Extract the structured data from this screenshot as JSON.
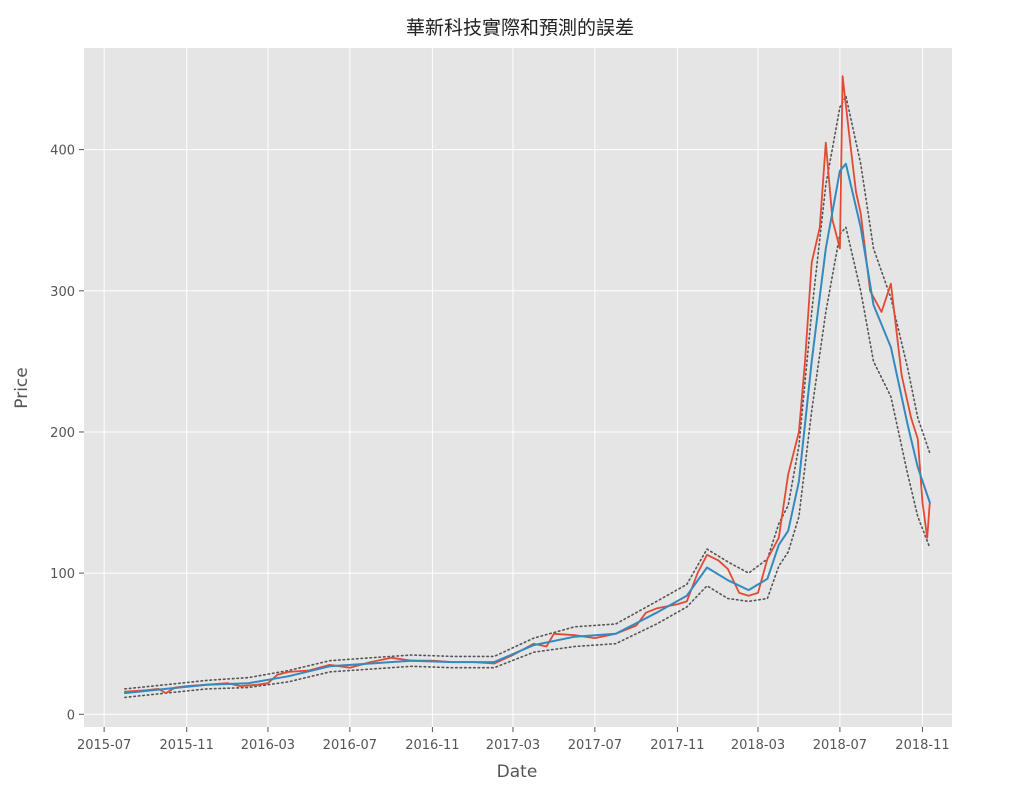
{
  "chart_data": {
    "type": "line",
    "title": "華新科技實際和預測的誤差",
    "xlabel": "Date",
    "ylabel": "Price",
    "x_ticks": [
      "2015-07",
      "2015-11",
      "2016-03",
      "2016-07",
      "2016-11",
      "2017-03",
      "2017-07",
      "2017-11",
      "2018-03",
      "2018-07",
      "2018-11"
    ],
    "y_ticks": [
      0,
      100,
      200,
      300,
      400
    ],
    "xlim": [
      "2015-06-01",
      "2018-12-15"
    ],
    "ylim": [
      -9,
      472
    ],
    "grid": true,
    "background": "#e5e5e5",
    "series": [
      {
        "role": "actual",
        "color": "#e24a33",
        "x": [
          "2015-08-01",
          "2015-09-01",
          "2015-09-20",
          "2015-10-01",
          "2015-10-15",
          "2015-11-01",
          "2015-12-01",
          "2016-01-01",
          "2016-01-20",
          "2016-02-15",
          "2016-03-01",
          "2016-03-15",
          "2016-04-01",
          "2016-05-01",
          "2016-06-01",
          "2016-07-01",
          "2016-08-01",
          "2016-09-01",
          "2016-10-01",
          "2016-11-01",
          "2016-12-01",
          "2017-01-01",
          "2017-02-01",
          "2017-03-01",
          "2017-04-01",
          "2017-04-20",
          "2017-05-01",
          "2017-06-01",
          "2017-07-01",
          "2017-08-01",
          "2017-09-01",
          "2017-09-15",
          "2017-10-01",
          "2017-11-01",
          "2017-11-15",
          "2017-12-01",
          "2017-12-15",
          "2018-01-01",
          "2018-01-15",
          "2018-02-01",
          "2018-02-15",
          "2018-03-01",
          "2018-03-15",
          "2018-04-01",
          "2018-04-15",
          "2018-05-01",
          "2018-05-10",
          "2018-05-20",
          "2018-06-01",
          "2018-06-10",
          "2018-06-20",
          "2018-07-01",
          "2018-07-05",
          "2018-07-15",
          "2018-07-25",
          "2018-08-01",
          "2018-08-15",
          "2018-09-01",
          "2018-09-15",
          "2018-10-01",
          "2018-10-15",
          "2018-10-25",
          "2018-11-01",
          "2018-11-08",
          "2018-11-12"
        ],
        "values": [
          16,
          17,
          18,
          15,
          19,
          20,
          21,
          22,
          20,
          21,
          22,
          28,
          30,
          31,
          35,
          33,
          37,
          40,
          38,
          38,
          37,
          37,
          36,
          42,
          50,
          48,
          57,
          56,
          54,
          57,
          63,
          72,
          75,
          78,
          80,
          100,
          113,
          109,
          103,
          86,
          84,
          86,
          110,
          125,
          170,
          200,
          250,
          320,
          345,
          405,
          350,
          330,
          452,
          410,
          370,
          355,
          300,
          285,
          305,
          240,
          210,
          195,
          150,
          125,
          150
        ]
      },
      {
        "role": "predicted",
        "color": "#348abd",
        "x": [
          "2015-08-01",
          "2015-10-01",
          "2015-12-01",
          "2016-02-01",
          "2016-04-01",
          "2016-06-01",
          "2016-08-01",
          "2016-10-01",
          "2016-12-01",
          "2017-02-01",
          "2017-04-01",
          "2017-06-01",
          "2017-08-01",
          "2017-10-01",
          "2017-11-15",
          "2017-12-15",
          "2018-01-15",
          "2018-02-15",
          "2018-03-15",
          "2018-04-01",
          "2018-04-15",
          "2018-05-01",
          "2018-05-20",
          "2018-06-10",
          "2018-07-01",
          "2018-07-10",
          "2018-08-01",
          "2018-08-20",
          "2018-09-15",
          "2018-10-10",
          "2018-10-25",
          "2018-11-12"
        ],
        "values": [
          15,
          18,
          21,
          22,
          27,
          34,
          36,
          38,
          37,
          37,
          49,
          55,
          57,
          72,
          84,
          104,
          95,
          88,
          96,
          120,
          130,
          165,
          250,
          330,
          385,
          390,
          345,
          290,
          260,
          205,
          175,
          150
        ]
      },
      {
        "role": "upper-bound",
        "color": "#555555",
        "x": [
          "2015-08-01",
          "2015-10-01",
          "2015-12-01",
          "2016-02-01",
          "2016-04-01",
          "2016-06-01",
          "2016-08-01",
          "2016-10-01",
          "2016-12-01",
          "2017-02-01",
          "2017-04-01",
          "2017-06-01",
          "2017-08-01",
          "2017-10-01",
          "2017-11-15",
          "2017-12-15",
          "2018-01-15",
          "2018-02-15",
          "2018-03-15",
          "2018-04-01",
          "2018-04-15",
          "2018-05-01",
          "2018-05-20",
          "2018-06-10",
          "2018-07-01",
          "2018-07-10",
          "2018-08-01",
          "2018-08-20",
          "2018-09-15",
          "2018-10-10",
          "2018-10-25",
          "2018-11-12"
        ],
        "values": [
          18,
          21,
          24,
          26,
          31,
          38,
          40,
          42,
          41,
          41,
          54,
          62,
          64,
          80,
          92,
          117,
          108,
          100,
          110,
          135,
          148,
          190,
          285,
          375,
          430,
          438,
          390,
          330,
          295,
          245,
          210,
          185
        ]
      },
      {
        "role": "lower-bound",
        "color": "#555555",
        "x": [
          "2015-08-01",
          "2015-10-01",
          "2015-12-01",
          "2016-02-01",
          "2016-04-01",
          "2016-06-01",
          "2016-08-01",
          "2016-10-01",
          "2016-12-01",
          "2017-02-01",
          "2017-04-01",
          "2017-06-01",
          "2017-08-01",
          "2017-10-01",
          "2017-11-15",
          "2017-12-15",
          "2018-01-15",
          "2018-02-15",
          "2018-03-15",
          "2018-04-01",
          "2018-04-15",
          "2018-05-01",
          "2018-05-20",
          "2018-06-10",
          "2018-07-01",
          "2018-07-10",
          "2018-08-01",
          "2018-08-20",
          "2018-09-15",
          "2018-10-10",
          "2018-10-25",
          "2018-11-12"
        ],
        "values": [
          12,
          15,
          18,
          19,
          23,
          30,
          32,
          34,
          33,
          33,
          44,
          48,
          50,
          64,
          76,
          91,
          82,
          80,
          82,
          105,
          115,
          140,
          215,
          285,
          340,
          345,
          300,
          250,
          225,
          170,
          140,
          118
        ]
      }
    ]
  }
}
